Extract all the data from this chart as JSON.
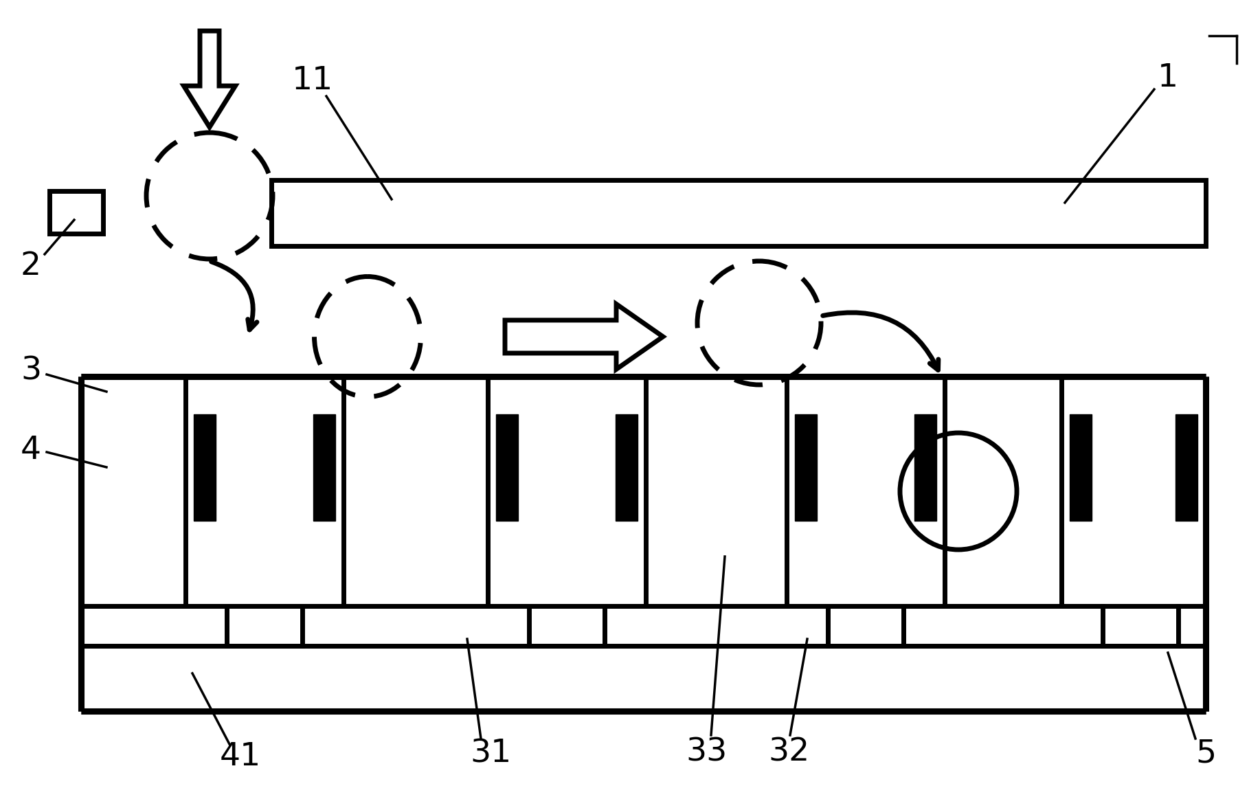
{
  "bg_color": "#ffffff",
  "line_color": "#000000",
  "lw_thin": 2.5,
  "lw_thick": 5.0,
  "fig_width": 18.18,
  "fig_height": 11.76,
  "dpi": 100
}
